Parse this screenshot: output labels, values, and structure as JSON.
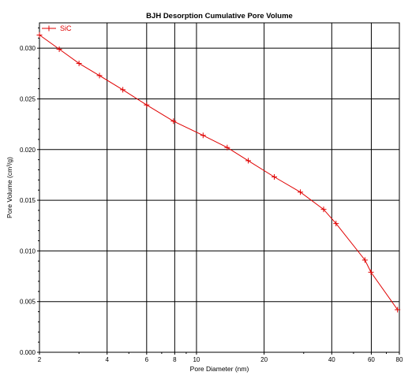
{
  "chart_data": {
    "type": "line",
    "title": "BJH Desorption Cumulative Pore Volume",
    "xlabel": "Pore Diameter (nm)",
    "ylabel": "Pore Volume (cm³/g)",
    "x_scale": "log",
    "xlim": [
      2,
      80
    ],
    "ylim": [
      0,
      0.0325
    ],
    "x_ticks": [
      2,
      4,
      6,
      8,
      10,
      20,
      40,
      60,
      80
    ],
    "x_tick_labels": [
      "2",
      "4",
      "6",
      "8",
      "10",
      "20",
      "40",
      "60",
      "80"
    ],
    "y_ticks": [
      0,
      0.005,
      0.01,
      0.015,
      0.02,
      0.025,
      0.03
    ],
    "y_tick_labels": [
      "0.000",
      "0.005",
      "0.010",
      "0.015",
      "0.020",
      "0.025",
      "0.030"
    ],
    "grid": true,
    "legend_position": "top-left",
    "series": [
      {
        "name": "SiC",
        "color": "#e00000",
        "marker": "plus",
        "x": [
          2.0,
          2.45,
          3.0,
          3.7,
          4.7,
          6.0,
          7.9,
          10.7,
          13.7,
          17.0,
          22.2,
          29.0,
          36.8,
          41.8,
          56.2,
          59.8,
          78.5
        ],
        "y": [
          0.0313,
          0.0299,
          0.0285,
          0.0273,
          0.0259,
          0.0244,
          0.0228,
          0.0214,
          0.0202,
          0.0189,
          0.0173,
          0.0158,
          0.0141,
          0.0127,
          0.0091,
          0.0079,
          0.0042
        ]
      }
    ]
  }
}
